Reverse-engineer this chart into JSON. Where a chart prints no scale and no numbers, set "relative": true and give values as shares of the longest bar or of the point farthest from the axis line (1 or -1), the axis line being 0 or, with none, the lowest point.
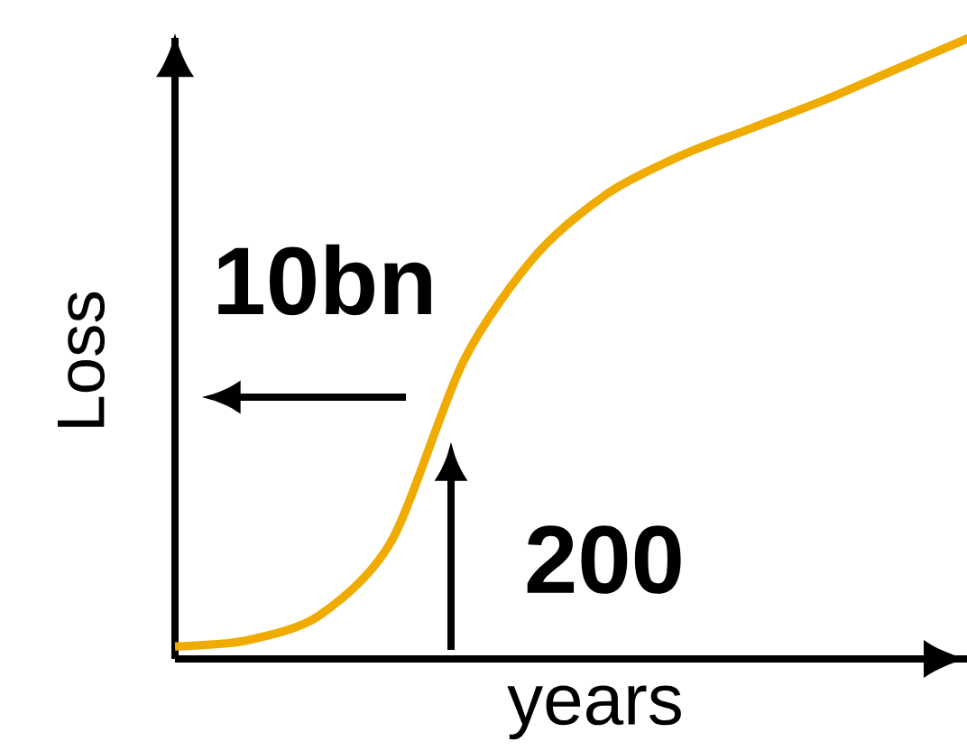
{
  "chart_data": {
    "type": "line",
    "relative": true,
    "xlabel": "years",
    "ylabel": "Loss",
    "color": "#efab00",
    "categories": [
      null,
      null,
      null,
      null,
      null,
      null,
      null,
      null,
      null,
      null,
      null,
      null
    ],
    "values": [
      0.02,
      0.03,
      0.07,
      0.19,
      0.48,
      0.65,
      0.75,
      0.81,
      0.855,
      0.9,
      0.95,
      1
    ],
    "annotations": [
      "10bn",
      "200"
    ]
  }
}
